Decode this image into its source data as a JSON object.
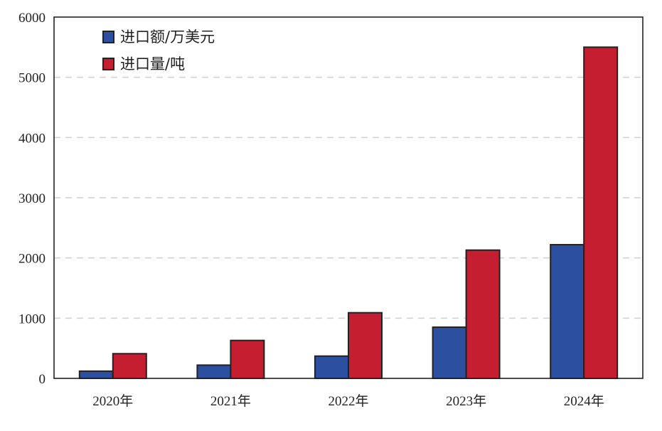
{
  "chart_data": {
    "type": "bar",
    "categories": [
      "2020年",
      "2021年",
      "2022年",
      "2023年",
      "2024年"
    ],
    "series": [
      {
        "name": "进口额/万美元",
        "values": [
          120,
          220,
          370,
          850,
          2220
        ]
      },
      {
        "name": "进口量/吨",
        "values": [
          410,
          630,
          1090,
          2130,
          5500
        ]
      }
    ],
    "ylim": [
      0,
      6000
    ],
    "yticks": [
      0,
      1000,
      2000,
      3000,
      4000,
      5000,
      6000
    ],
    "grid": true,
    "legend": "top-left",
    "colors": {
      "series": [
        "#2c4fa0",
        "#c41e30"
      ],
      "grid": "#cfcfcf",
      "axis": "#222222"
    }
  }
}
